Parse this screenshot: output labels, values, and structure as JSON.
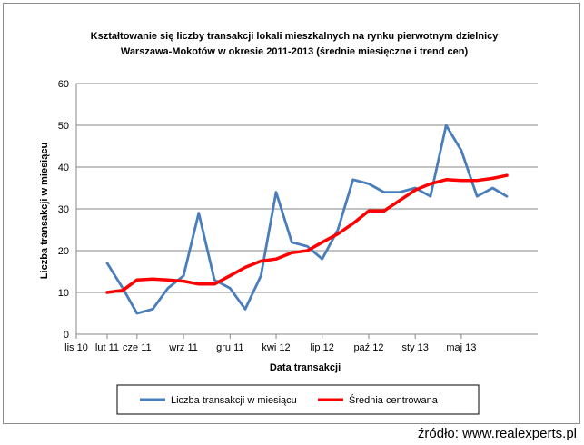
{
  "chart_data": {
    "type": "line",
    "title_lines": [
      "Kształtowanie  się liczby  transakcji  lokali  mieszkalnych  na rynku pierwotnym dzielnicy",
      "Warszawa-Mokotów  w okresie 2011-2013 (średnie miesięczne i trend cen)"
    ],
    "xlabel": "Data transakcji",
    "ylabel": "Liczba transakcji w miesiącu",
    "ylim": [
      0,
      60
    ],
    "yticks": [
      0,
      10,
      20,
      30,
      40,
      50,
      60
    ],
    "xlim": [
      "2010-11-01",
      "2013-05-01"
    ],
    "xticks": [
      {
        "date": "2010-11-01",
        "label": "lis 10"
      },
      {
        "date": "2011-01-01",
        "label": "lut 11"
      },
      {
        "date": "2011-03-01",
        "label": "cze 11"
      },
      {
        "date": "2011-06-01",
        "label": "wrz 11"
      },
      {
        "date": "2011-09-01",
        "label": "gru 11"
      },
      {
        "date": "2011-12-01",
        "label": "kwi 12"
      },
      {
        "date": "2012-03-01",
        "label": "lip 12"
      },
      {
        "date": "2012-06-01",
        "label": "paź 12"
      },
      {
        "date": "2012-09-01",
        "label": "sty 13"
      },
      {
        "date": "2012-12-01",
        "label": "maj 13"
      }
    ],
    "grid": true,
    "legend_position": "bottom",
    "series": [
      {
        "name": "Liczba transakcji w miesiącu",
        "color": "#4a7ebb",
        "points": [
          {
            "x": "2011-01-01",
            "y": 17
          },
          {
            "x": "2011-02-01",
            "y": 11
          },
          {
            "x": "2011-03-01",
            "y": 5
          },
          {
            "x": "2011-04-01",
            "y": 6
          },
          {
            "x": "2011-05-01",
            "y": 11
          },
          {
            "x": "2011-06-01",
            "y": 14
          },
          {
            "x": "2011-07-01",
            "y": 29
          },
          {
            "x": "2011-08-01",
            "y": 13
          },
          {
            "x": "2011-09-01",
            "y": 11
          },
          {
            "x": "2011-10-01",
            "y": 6
          },
          {
            "x": "2011-11-01",
            "y": 14
          },
          {
            "x": "2011-12-01",
            "y": 34
          },
          {
            "x": "2012-01-01",
            "y": 22
          },
          {
            "x": "2012-02-01",
            "y": 21
          },
          {
            "x": "2012-03-01",
            "y": 18
          },
          {
            "x": "2012-04-01",
            "y": 25
          },
          {
            "x": "2012-05-01",
            "y": 37
          },
          {
            "x": "2012-06-01",
            "y": 36
          },
          {
            "x": "2012-07-01",
            "y": 34
          },
          {
            "x": "2012-08-01",
            "y": 34
          },
          {
            "x": "2012-09-01",
            "y": 35
          },
          {
            "x": "2012-10-01",
            "y": 33
          },
          {
            "x": "2012-11-01",
            "y": 50
          },
          {
            "x": "2012-12-01",
            "y": 44
          },
          {
            "x": "2013-01-01",
            "y": 33
          },
          {
            "x": "2013-02-01",
            "y": 35
          },
          {
            "x": "2013-03-01",
            "y": 33
          }
        ]
      },
      {
        "name": "Średnia centrowana",
        "color": "#ff0000",
        "points": [
          {
            "x": "2011-01-01",
            "y": 10
          },
          {
            "x": "2011-02-01",
            "y": 10.5
          },
          {
            "x": "2011-03-01",
            "y": 13
          },
          {
            "x": "2011-04-01",
            "y": 13.2
          },
          {
            "x": "2011-05-01",
            "y": 13
          },
          {
            "x": "2011-06-01",
            "y": 12.7
          },
          {
            "x": "2011-07-01",
            "y": 12
          },
          {
            "x": "2011-08-01",
            "y": 12
          },
          {
            "x": "2011-09-01",
            "y": 14
          },
          {
            "x": "2011-10-01",
            "y": 16
          },
          {
            "x": "2011-11-01",
            "y": 17.5
          },
          {
            "x": "2011-12-01",
            "y": 18
          },
          {
            "x": "2012-01-01",
            "y": 19.5
          },
          {
            "x": "2012-02-01",
            "y": 20
          },
          {
            "x": "2012-03-01",
            "y": 22
          },
          {
            "x": "2012-04-01",
            "y": 24
          },
          {
            "x": "2012-05-01",
            "y": 26.5
          },
          {
            "x": "2012-06-01",
            "y": 29.5
          },
          {
            "x": "2012-07-01",
            "y": 29.5
          },
          {
            "x": "2012-08-01",
            "y": 32
          },
          {
            "x": "2012-09-01",
            "y": 34.5
          },
          {
            "x": "2012-10-01",
            "y": 36
          },
          {
            "x": "2012-11-01",
            "y": 37
          },
          {
            "x": "2012-12-01",
            "y": 36.8
          },
          {
            "x": "2013-01-01",
            "y": 36.8
          },
          {
            "x": "2013-02-01",
            "y": 37.3
          },
          {
            "x": "2013-03-01",
            "y": 38
          }
        ]
      }
    ]
  },
  "source_text": "źródło: www.realexperts.pl"
}
